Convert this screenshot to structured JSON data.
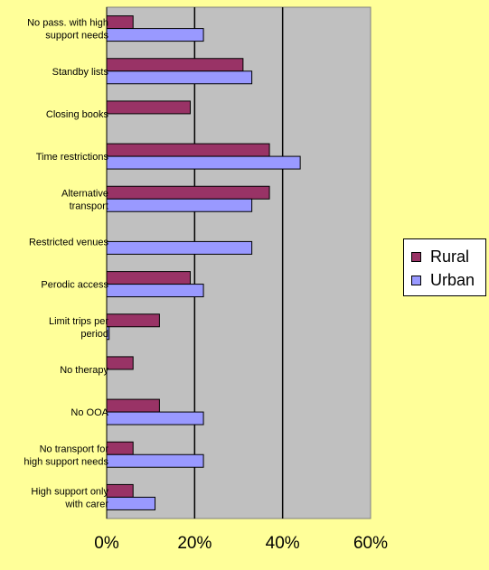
{
  "chart_data": {
    "type": "bar",
    "orientation": "horizontal",
    "categories": [
      "No pass. with high\nsupport needs",
      "Standby lists",
      "Closing books",
      "Time restrictions",
      "Alternative\ntransport",
      "Restricted venues",
      "Perodic access",
      "Limit trips per\nperiod",
      "No therapy",
      "No OOA",
      "No transport for\nhigh support needs",
      "High support only\nwith carer"
    ],
    "series": [
      {
        "name": "Rural",
        "color": "#993366",
        "values": [
          6,
          31,
          19,
          37,
          37,
          0,
          19,
          12,
          6,
          12,
          6,
          6
        ]
      },
      {
        "name": "Urban",
        "color": "#9999FF",
        "values": [
          22,
          33,
          0,
          44,
          33,
          33,
          22,
          0.556,
          0,
          22,
          22,
          11
        ]
      }
    ],
    "xlim": [
      0,
      60
    ],
    "xticks": [
      "0%",
      "20%",
      "40%",
      "60%"
    ],
    "xtick_values": [
      0,
      20,
      40,
      60
    ],
    "gridlines": [
      20,
      40
    ],
    "grid": true,
    "plot_background": "#C0C0C0",
    "legend_position": "right"
  }
}
